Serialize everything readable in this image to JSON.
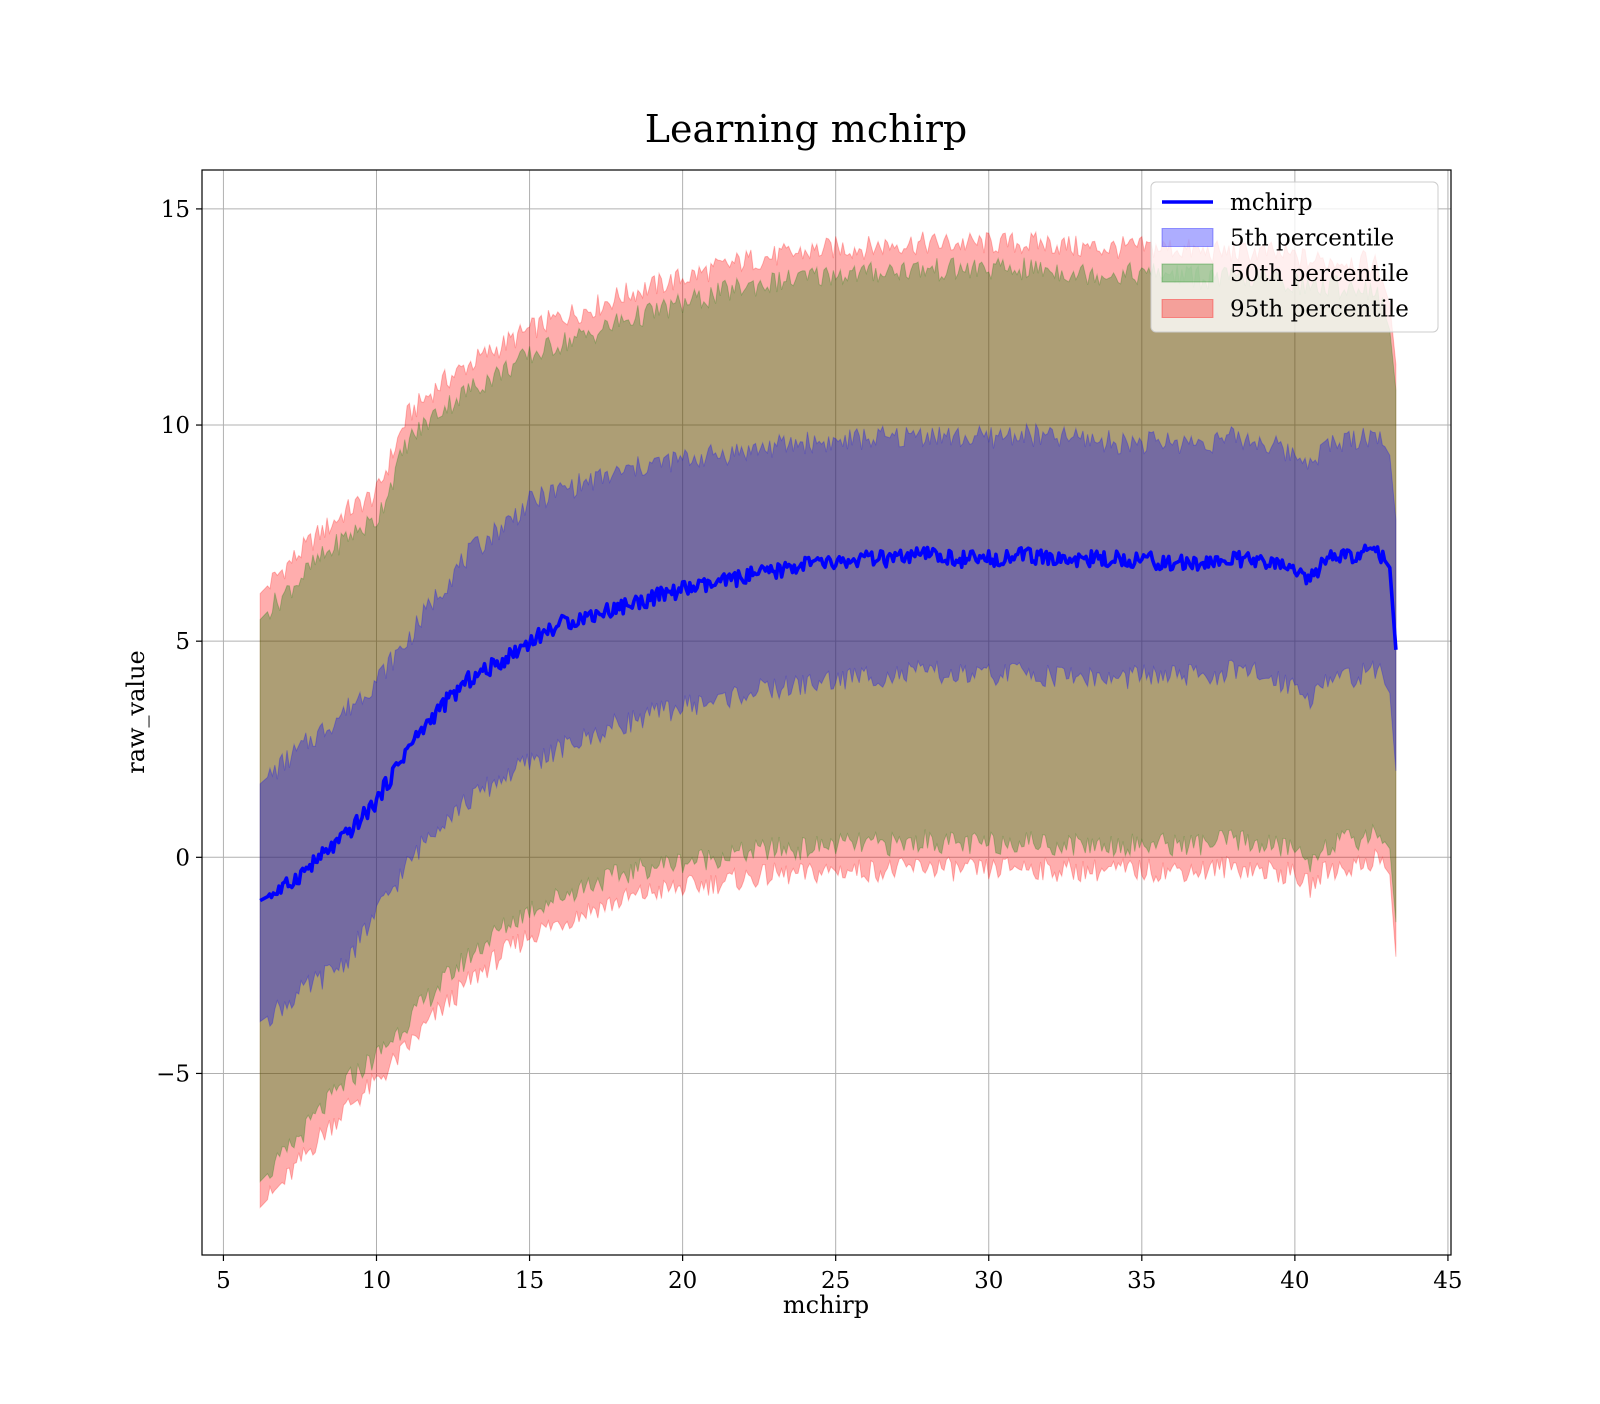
{
  "chart_data": {
    "type": "line",
    "title": "Learning mchirp",
    "xlabel": "mchirp",
    "ylabel": "raw_value",
    "xlim": [
      4.3,
      45.1
    ],
    "ylim": [
      -9.2,
      15.9
    ],
    "xticks": [
      5,
      10,
      15,
      20,
      25,
      30,
      35,
      40,
      45
    ],
    "yticks": [
      -5,
      0,
      5,
      10,
      15
    ],
    "xtick_labels": [
      "5",
      "10",
      "15",
      "20",
      "25",
      "30",
      "35",
      "40",
      "45"
    ],
    "ytick_labels": [
      "−5",
      "0",
      "5",
      "10",
      "15"
    ],
    "grid": true,
    "legend_position": "top-right",
    "x": [
      6.2,
      7,
      8,
      9,
      10,
      11,
      12,
      13,
      14,
      15,
      16,
      17,
      18,
      19,
      20,
      21,
      22,
      23,
      24,
      25,
      26,
      27,
      28,
      29,
      30,
      31,
      32,
      33,
      34,
      35,
      36,
      37,
      38,
      39,
      40,
      40.5,
      41,
      42,
      42.7,
      43.1,
      43.3
    ],
    "series": [
      {
        "name": "mchirp",
        "kind": "line",
        "color": "#0000ff",
        "values": [
          -1.0,
          -0.7,
          -0.1,
          0.5,
          1.3,
          2.5,
          3.4,
          4.1,
          4.5,
          5.0,
          5.4,
          5.6,
          5.8,
          6.0,
          6.2,
          6.3,
          6.5,
          6.6,
          6.8,
          6.8,
          6.9,
          6.9,
          7.0,
          6.9,
          6.9,
          7.0,
          6.9,
          6.9,
          6.9,
          6.9,
          6.8,
          6.8,
          6.9,
          6.8,
          6.7,
          6.4,
          6.9,
          7.0,
          7.1,
          6.7,
          4.8
        ]
      },
      {
        "name": "5th percentile",
        "kind": "band",
        "color": "#0000ff",
        "lower": [
          -3.8,
          -3.4,
          -2.9,
          -2.4,
          -1.3,
          -0.2,
          0.8,
          1.3,
          1.8,
          2.2,
          2.5,
          2.8,
          3.1,
          3.3,
          3.5,
          3.6,
          3.8,
          3.9,
          4.0,
          4.1,
          4.2,
          4.2,
          4.3,
          4.2,
          4.2,
          4.3,
          4.2,
          4.2,
          4.1,
          4.2,
          4.2,
          4.2,
          4.3,
          4.2,
          4.0,
          3.7,
          4.1,
          4.2,
          4.3,
          3.8,
          2.0
        ],
        "upper": [
          1.7,
          2.2,
          2.8,
          3.4,
          4.1,
          5.0,
          6.1,
          7.0,
          7.6,
          8.2,
          8.5,
          8.7,
          8.9,
          9.1,
          9.2,
          9.3,
          9.4,
          9.5,
          9.6,
          9.6,
          9.7,
          9.7,
          9.8,
          9.7,
          9.7,
          9.8,
          9.7,
          9.7,
          9.6,
          9.6,
          9.6,
          9.6,
          9.7,
          9.6,
          9.3,
          9.2,
          9.5,
          9.7,
          9.8,
          9.3,
          7.8
        ]
      },
      {
        "name": "50th percentile",
        "kind": "band",
        "color": "#008000",
        "lower": [
          -7.5,
          -6.9,
          -6.0,
          -5.2,
          -4.6,
          -3.8,
          -3.0,
          -2.3,
          -1.7,
          -1.2,
          -0.9,
          -0.6,
          -0.4,
          -0.2,
          -0.1,
          0.0,
          0.1,
          0.2,
          0.2,
          0.3,
          0.3,
          0.3,
          0.4,
          0.3,
          0.3,
          0.4,
          0.3,
          0.3,
          0.3,
          0.3,
          0.3,
          0.3,
          0.4,
          0.3,
          0.2,
          -0.1,
          0.3,
          0.4,
          0.6,
          0.2,
          -1.5
        ],
        "upper": [
          5.5,
          6.1,
          6.8,
          7.4,
          7.8,
          9.6,
          10.3,
          10.8,
          11.2,
          11.6,
          11.9,
          12.1,
          12.4,
          12.6,
          12.8,
          13.0,
          13.2,
          13.3,
          13.4,
          13.5,
          13.5,
          13.6,
          13.6,
          13.6,
          13.6,
          13.6,
          13.6,
          13.5,
          13.5,
          13.5,
          13.5,
          13.4,
          13.4,
          13.4,
          13.3,
          13.2,
          13.2,
          13.2,
          13.1,
          12.2,
          10.8
        ]
      },
      {
        "name": "95th percentile",
        "kind": "band",
        "color": "#ff0000",
        "lower": [
          -8.1,
          -7.5,
          -6.6,
          -5.8,
          -5.2,
          -4.4,
          -3.6,
          -2.9,
          -2.3,
          -1.8,
          -1.5,
          -1.2,
          -1.0,
          -0.8,
          -0.7,
          -0.6,
          -0.5,
          -0.4,
          -0.4,
          -0.3,
          -0.3,
          -0.3,
          -0.2,
          -0.3,
          -0.3,
          -0.2,
          -0.3,
          -0.3,
          -0.3,
          -0.3,
          -0.3,
          -0.3,
          -0.2,
          -0.3,
          -0.4,
          -0.7,
          -0.3,
          -0.2,
          0.0,
          -0.4,
          -2.3
        ],
        "upper": [
          6.1,
          6.7,
          7.4,
          8.0,
          8.4,
          10.2,
          10.9,
          11.4,
          11.8,
          12.2,
          12.5,
          12.7,
          13.0,
          13.2,
          13.4,
          13.6,
          13.8,
          13.9,
          14.0,
          14.1,
          14.1,
          14.2,
          14.2,
          14.2,
          14.2,
          14.2,
          14.2,
          14.1,
          14.1,
          14.1,
          14.1,
          14.0,
          14.0,
          14.0,
          13.9,
          13.8,
          13.8,
          13.8,
          13.7,
          12.8,
          11.4
        ]
      }
    ]
  }
}
